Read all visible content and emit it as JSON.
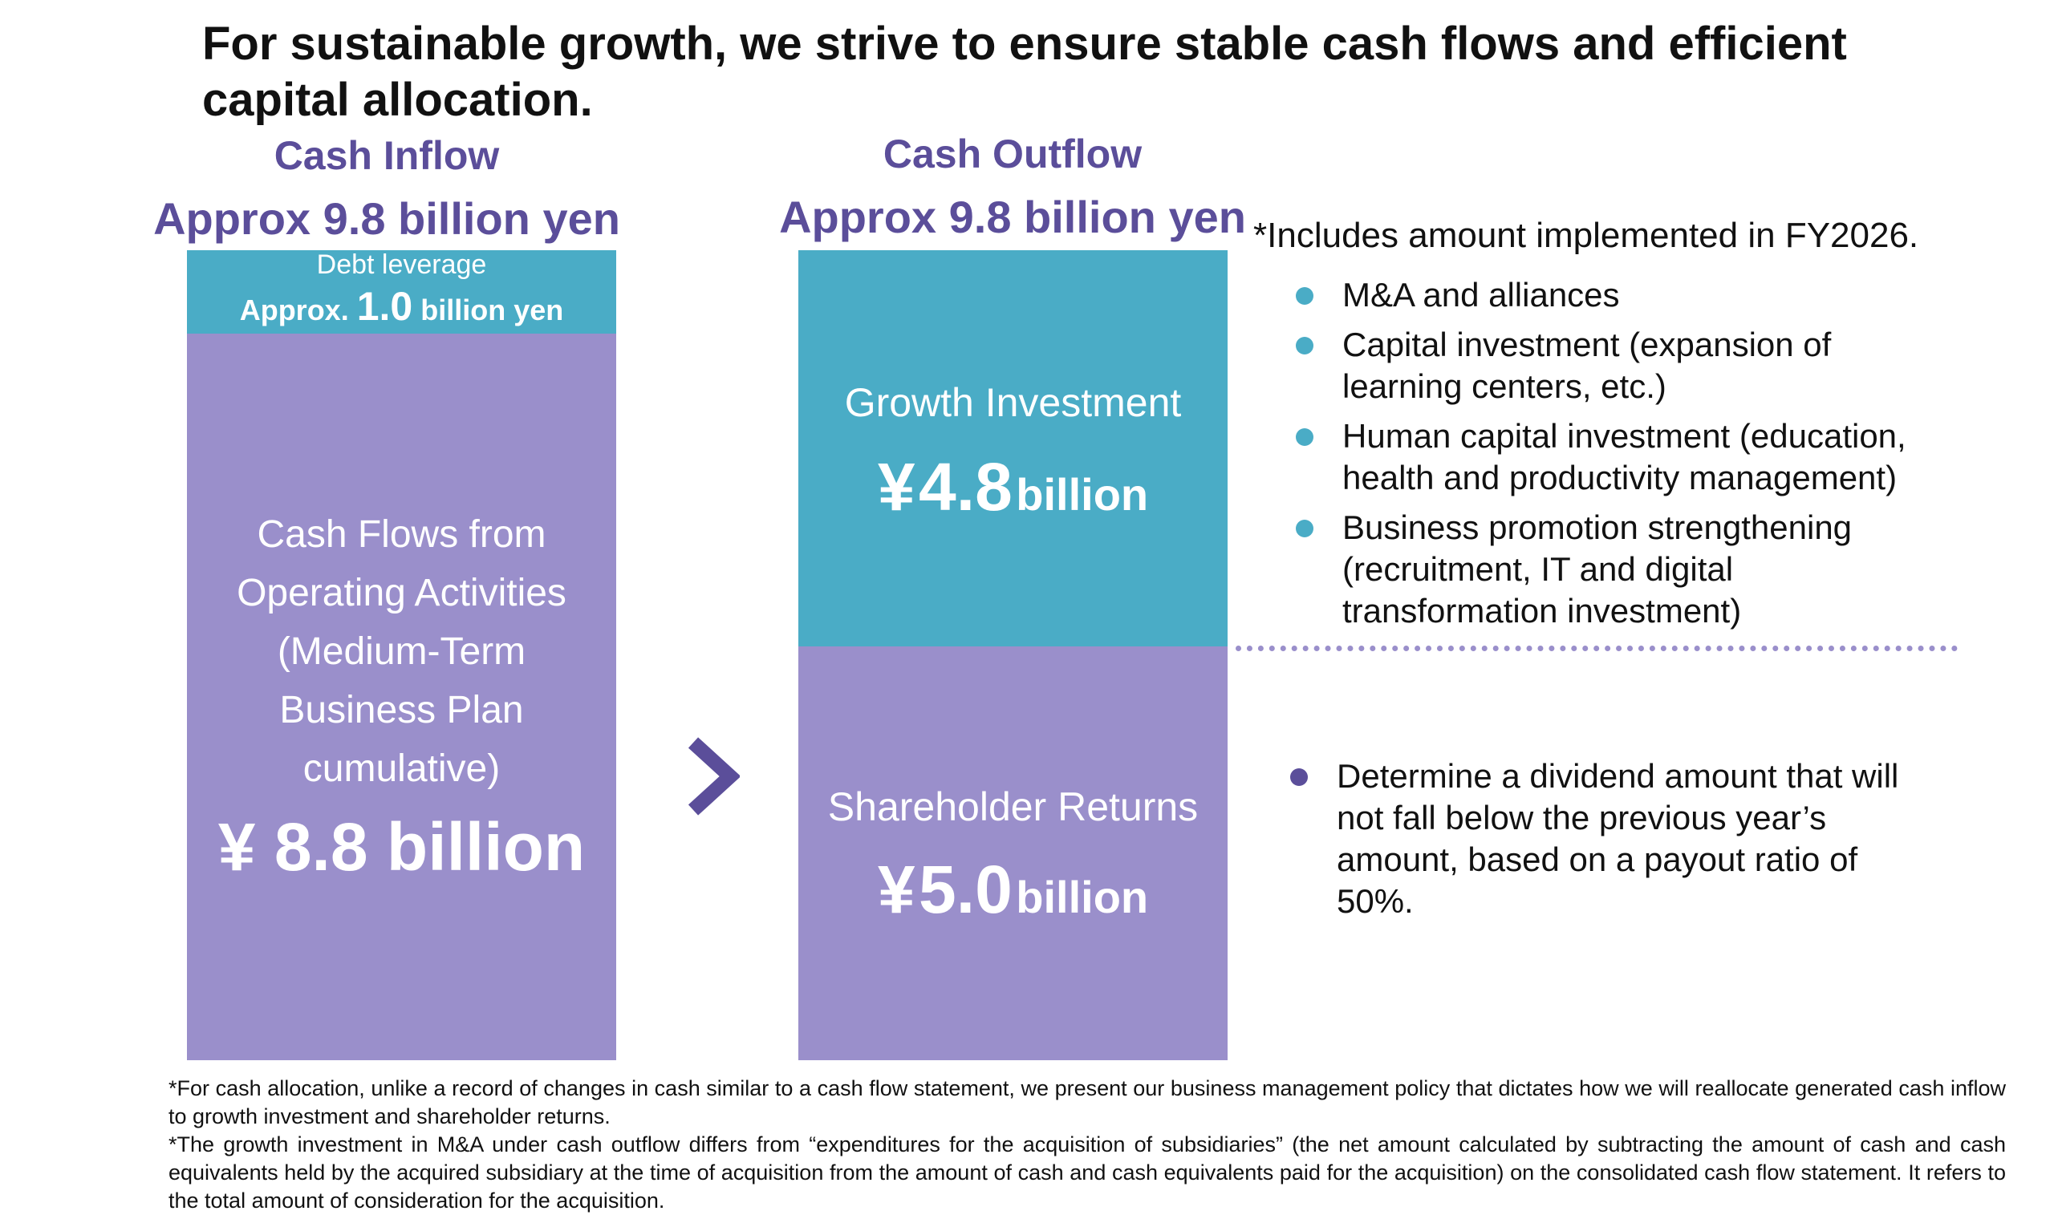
{
  "headline": "For sustainable growth, we strive to ensure stable cash flows and efficient capital allocation.",
  "inflow": {
    "title": "Cash Inflow",
    "amount": "Approx 9.8 billion yen",
    "debt_label": "Debt leverage",
    "debt_prefix": "Approx.",
    "debt_value": "1.0",
    "debt_suffix": "billion yen",
    "operating_lines": [
      "Cash Flows from",
      "Operating Activities",
      "(Medium-Term",
      "Business Plan",
      "cumulative)"
    ],
    "operating_value": "¥ 8.8 billion"
  },
  "outflow": {
    "title": "Cash Outflow",
    "amount": "Approx 9.8 billion yen",
    "growth_label": "Growth Investment",
    "growth_currency": "¥",
    "growth_value": "4.8",
    "growth_unit": "billion",
    "returns_label": "Shareholder Returns",
    "returns_currency": "¥",
    "returns_value": "5.0",
    "returns_unit": "billion"
  },
  "note": "*Includes amount implemented in FY2026.",
  "growth_items": [
    "M&A and alliances",
    "Capital investment (expansion of learning centers, etc.)",
    "Human capital investment (education, health and productivity management)",
    "Business promotion strengthening (recruitment, IT and digital transformation investment)"
  ],
  "returns_items": [
    "Determine a dividend amount that will not fall below the previous year’s amount, based on a payout ratio of 50%."
  ],
  "footnotes": [
    "*For cash allocation, unlike a record of changes in cash similar to a cash flow statement, we present our business management policy that dictates how we will reallocate generated cash inflow to growth investment and shareholder returns.",
    "*The growth investment in M&A under cash outflow differs from “expenditures for the acquisition of subsidiaries” (the net amount calculated by subtracting the amount of cash and cash equivalents held by the acquired subsidiary at the time of acquisition from the amount of cash and cash equivalents paid for the acquisition) on the consolidated cash flow statement. It refers to the total amount of consideration for the acquisition."
  ],
  "colors": {
    "teal": "#4aacc6",
    "purple_block": "#9a8fcb",
    "purple_text": "#5b4e9a"
  }
}
